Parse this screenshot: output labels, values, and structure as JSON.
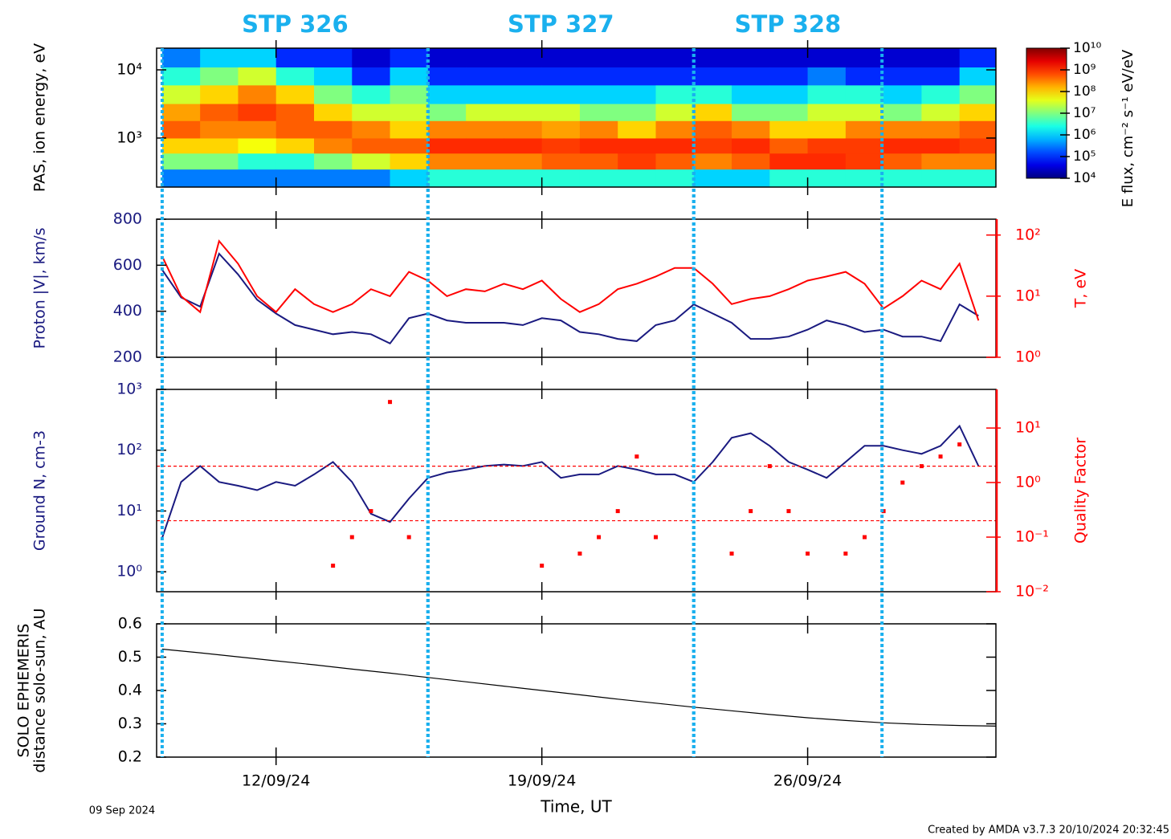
{
  "chart_data": [
    {
      "type": "spectrogram",
      "ylabel": "PAS, ion energy, eV",
      "ylog": true,
      "xlim": [
        "2024-09-08T20:30",
        "2024-09-30T23:00"
      ],
      "ylim": [
        191,
        20800
      ],
      "yticks": [
        {
          "value": 1000,
          "label": "10³"
        },
        {
          "value": 10000,
          "label": "10⁴"
        }
      ],
      "time_edges": [
        "2024-09-09T00:00",
        "2024-09-10T00:00",
        "2024-09-11T00:00",
        "2024-09-12T00:00",
        "2024-09-13T00:00",
        "2024-09-14T00:00",
        "2024-09-15T00:00",
        "2024-09-16T00:00",
        "2024-09-17T00:00",
        "2024-09-18T00:00",
        "2024-09-19T00:00",
        "2024-09-20T00:00",
        "2024-09-21T00:00",
        "2024-09-22T00:00",
        "2024-09-23T00:00",
        "2024-09-24T00:00",
        "2024-09-25T00:00",
        "2024-09-26T00:00",
        "2024-09-27T00:00",
        "2024-09-28T00:00",
        "2024-09-29T00:00",
        "2024-09-30T00:00",
        "2024-09-30T23:00"
      ],
      "energy_edges": [
        191,
        350,
        600,
        1000,
        1800,
        3200,
        6000,
        11000,
        20800
      ],
      "z": [
        [
          300000.0,
          10000000.0,
          100000000.0,
          500000000.0,
          200000000.0,
          30000000.0,
          3000000.0,
          300000.0
        ],
        [
          300000.0,
          10000000.0,
          100000000.0,
          300000000.0,
          500000000.0,
          100000000.0,
          10000000.0,
          1000000.0
        ],
        [
          300000.0,
          3000000.0,
          50000000.0,
          300000000.0,
          800000000.0,
          300000000.0,
          30000000.0,
          1000000.0
        ],
        [
          300000.0,
          3000000.0,
          100000000.0,
          500000000.0,
          500000000.0,
          100000000.0,
          3000000.0,
          100000.0
        ],
        [
          300000.0,
          10000000.0,
          300000000.0,
          500000000.0,
          100000000.0,
          10000000.0,
          1000000.0,
          100000.0
        ],
        [
          300000.0,
          30000000.0,
          500000000.0,
          300000000.0,
          30000000.0,
          3000000.0,
          100000.0,
          30000.0
        ],
        [
          1000000.0,
          100000000.0,
          500000000.0,
          100000000.0,
          30000000.0,
          10000000.0,
          1000000.0,
          100000.0
        ],
        [
          3000000.0,
          300000000.0,
          1000000000.0,
          300000000.0,
          10000000.0,
          1000000.0,
          100000.0,
          30000.0
        ],
        [
          3000000.0,
          300000000.0,
          1000000000.0,
          300000000.0,
          30000000.0,
          1000000.0,
          100000.0,
          30000.0
        ],
        [
          3000000.0,
          300000000.0,
          1000000000.0,
          300000000.0,
          30000000.0,
          1000000.0,
          100000.0,
          30000.0
        ],
        [
          3000000.0,
          500000000.0,
          800000000.0,
          200000000.0,
          30000000.0,
          1000000.0,
          100000.0,
          30000.0
        ],
        [
          3000000.0,
          500000000.0,
          1000000000.0,
          300000000.0,
          10000000.0,
          1000000.0,
          100000.0,
          30000.0
        ],
        [
          3000000.0,
          800000000.0,
          1000000000.0,
          100000000.0,
          10000000.0,
          1000000.0,
          100000.0,
          30000.0
        ],
        [
          3000000.0,
          500000000.0,
          1000000000.0,
          300000000.0,
          30000000.0,
          3000000.0,
          100000.0,
          30000.0
        ],
        [
          1000000.0,
          300000000.0,
          800000000.0,
          500000000.0,
          100000000.0,
          3000000.0,
          100000.0,
          30000.0
        ],
        [
          1000000.0,
          500000000.0,
          1000000000.0,
          300000000.0,
          10000000.0,
          1000000.0,
          100000.0,
          30000.0
        ],
        [
          3000000.0,
          1000000000.0,
          500000000.0,
          100000000.0,
          10000000.0,
          1000000.0,
          100000.0,
          30000.0
        ],
        [
          3000000.0,
          1000000000.0,
          800000000.0,
          100000000.0,
          30000000.0,
          3000000.0,
          300000.0,
          30000.0
        ],
        [
          3000000.0,
          800000000.0,
          800000000.0,
          300000000.0,
          30000000.0,
          3000000.0,
          100000.0,
          30000.0
        ],
        [
          3000000.0,
          500000000.0,
          1000000000.0,
          300000000.0,
          10000000.0,
          1000000.0,
          100000.0,
          30000.0
        ],
        [
          3000000.0,
          300000000.0,
          1000000000.0,
          300000000.0,
          30000000.0,
          3000000.0,
          100000.0,
          30000.0
        ],
        [
          3000000.0,
          300000000.0,
          800000000.0,
          500000000.0,
          100000000.0,
          10000000.0,
          1000000.0,
          100000.0
        ]
      ],
      "colormap": "jet",
      "zlim": [
        10000.0,
        10000000000.0
      ],
      "zticks": [
        {
          "value": 10000.0,
          "label": "10⁴"
        },
        {
          "value": 100000.0,
          "label": "10⁵"
        },
        {
          "value": 1000000.0,
          "label": "10⁶"
        },
        {
          "value": 10000000.0,
          "label": "10⁷"
        },
        {
          "value": 100000000.0,
          "label": "10⁸"
        },
        {
          "value": 1000000000.0,
          "label": "10⁹"
        },
        {
          "value": 10000000000.0,
          "label": "10¹⁰"
        }
      ],
      "zlabel": "E flux, cm⁻² s⁻¹ eV/eV"
    },
    {
      "type": "line",
      "ylabel": "Proton |V|, km/s",
      "y2label": "T, eV",
      "y2log": true,
      "xlim": [
        "2024-09-08T20:30",
        "2024-09-30T23:00"
      ],
      "ylim": [
        200,
        800
      ],
      "yticks": [
        200,
        400,
        600,
        800
      ],
      "y2lim": [
        1,
        182
      ],
      "y2ticks": [
        {
          "value": 1,
          "label": "10⁰"
        },
        {
          "value": 10,
          "label": "10¹"
        },
        {
          "value": 100,
          "label": "10²"
        }
      ],
      "x": [
        "2024-09-09T00:00",
        "2024-09-09T12:00",
        "2024-09-10T00:00",
        "2024-09-10T12:00",
        "2024-09-11T00:00",
        "2024-09-11T12:00",
        "2024-09-12T00:00",
        "2024-09-12T12:00",
        "2024-09-13T00:00",
        "2024-09-13T12:00",
        "2024-09-14T00:00",
        "2024-09-14T12:00",
        "2024-09-15T00:00",
        "2024-09-15T12:00",
        "2024-09-16T00:00",
        "2024-09-16T12:00",
        "2024-09-17T00:00",
        "2024-09-17T12:00",
        "2024-09-18T00:00",
        "2024-09-18T12:00",
        "2024-09-19T00:00",
        "2024-09-19T12:00",
        "2024-09-20T00:00",
        "2024-09-20T12:00",
        "2024-09-21T00:00",
        "2024-09-21T12:00",
        "2024-09-22T00:00",
        "2024-09-22T12:00",
        "2024-09-23T00:00",
        "2024-09-23T12:00",
        "2024-09-24T00:00",
        "2024-09-24T12:00",
        "2024-09-25T00:00",
        "2024-09-25T12:00",
        "2024-09-26T00:00",
        "2024-09-26T12:00",
        "2024-09-27T00:00",
        "2024-09-27T12:00",
        "2024-09-28T00:00",
        "2024-09-28T12:00",
        "2024-09-29T00:00",
        "2024-09-29T12:00",
        "2024-09-30T00:00",
        "2024-09-30T12:00"
      ],
      "series": [
        {
          "color": "#1a1a80",
          "values": [
            580,
            460,
            420,
            650,
            560,
            450,
            390,
            340,
            320,
            300,
            310,
            300,
            260,
            370,
            390,
            360,
            350,
            350,
            350,
            340,
            370,
            360,
            310,
            300,
            280,
            270,
            340,
            360,
            430,
            390,
            350,
            280,
            280,
            290,
            320,
            360,
            340,
            310,
            320,
            290,
            290,
            270,
            430,
            380
          ]
        },
        {
          "color": "#ff0000",
          "axis": "y2",
          "values": [
            45,
            10,
            5.5,
            80,
            34,
            10,
            5.5,
            13,
            7.4,
            5.5,
            7.4,
            13,
            10,
            25,
            18,
            10,
            13,
            12,
            16,
            13,
            18,
            9,
            5.5,
            7.4,
            13,
            16,
            21,
            29,
            29,
            16,
            7.4,
            9,
            10,
            13,
            18,
            21,
            25,
            16,
            6.3,
            10,
            18,
            13,
            34,
            4
          ]
        }
      ]
    },
    {
      "type": "line",
      "ylabel": "Ground N, cm-3",
      "y2label": "Quality Factor",
      "ylog": true,
      "y2log": true,
      "xlim": [
        "2024-09-08T20:30",
        "2024-09-30T23:00"
      ],
      "ylim": [
        0.47,
        1000
      ],
      "yticks": [
        {
          "value": 1,
          "label": "10⁰"
        },
        {
          "value": 10,
          "label": "10¹"
        },
        {
          "value": 100,
          "label": "10²"
        },
        {
          "value": 1000,
          "label": "10³"
        }
      ],
      "y2lim": [
        0.01,
        51
      ],
      "y2ticks": [
        {
          "value": 0.01,
          "label": "10⁻²"
        },
        {
          "value": 0.1,
          "label": "10⁻¹"
        },
        {
          "value": 1,
          "label": "10⁰"
        },
        {
          "value": 10,
          "label": "10¹"
        }
      ],
      "y2_hlines": [
        2,
        0.2
      ],
      "x": [
        "2024-09-09T00:00",
        "2024-09-09T12:00",
        "2024-09-10T00:00",
        "2024-09-10T12:00",
        "2024-09-11T00:00",
        "2024-09-11T12:00",
        "2024-09-12T00:00",
        "2024-09-12T12:00",
        "2024-09-13T00:00",
        "2024-09-13T12:00",
        "2024-09-14T00:00",
        "2024-09-14T12:00",
        "2024-09-15T00:00",
        "2024-09-15T12:00",
        "2024-09-16T00:00",
        "2024-09-16T12:00",
        "2024-09-17T00:00",
        "2024-09-17T12:00",
        "2024-09-18T00:00",
        "2024-09-18T12:00",
        "2024-09-19T00:00",
        "2024-09-19T12:00",
        "2024-09-20T00:00",
        "2024-09-20T12:00",
        "2024-09-21T00:00",
        "2024-09-21T12:00",
        "2024-09-22T00:00",
        "2024-09-22T12:00",
        "2024-09-23T00:00",
        "2024-09-23T12:00",
        "2024-09-24T00:00",
        "2024-09-24T12:00",
        "2024-09-25T00:00",
        "2024-09-25T12:00",
        "2024-09-26T00:00",
        "2024-09-26T12:00",
        "2024-09-27T00:00",
        "2024-09-27T12:00",
        "2024-09-28T00:00",
        "2024-09-28T12:00",
        "2024-09-29T00:00",
        "2024-09-29T12:00",
        "2024-09-30T00:00",
        "2024-09-30T12:00"
      ],
      "series": [
        {
          "color": "#1a1a80",
          "values": [
            3.6,
            30,
            55,
            30,
            26,
            22,
            30,
            26,
            40,
            64,
            30,
            9,
            6.6,
            16,
            35,
            43,
            48,
            55,
            58,
            55,
            64,
            35,
            40,
            40,
            55,
            48,
            40,
            40,
            30,
            64,
            160,
            190,
            118,
            64,
            48,
            35,
            64,
            118,
            118,
            100,
            87,
            118,
            250,
            55
          ]
        },
        {
          "color": "#ff0000",
          "axis": "y2",
          "mode": "markers",
          "values": [
            null,
            null,
            null,
            null,
            null,
            null,
            null,
            null,
            null,
            0.03,
            0.1,
            0.3,
            30,
            0.1,
            null,
            null,
            null,
            null,
            null,
            null,
            0.03,
            null,
            0.05,
            0.1,
            0.3,
            3,
            0.1,
            null,
            null,
            null,
            0.05,
            0.3,
            2,
            0.3,
            0.05,
            null,
            0.05,
            0.1,
            0.3,
            1,
            2,
            3,
            5,
            null
          ]
        }
      ]
    },
    {
      "type": "line",
      "ylabel": [
        "SOLO EPHEMERIS",
        "distance solo-sun, AU"
      ],
      "xlabel": "Time, UT",
      "xlim": [
        "2024-09-08T20:30",
        "2024-09-30T23:00"
      ],
      "xticks": [
        {
          "value": "2024-09-12T00:00",
          "label": "12/09/24"
        },
        {
          "value": "2024-09-19T00:00",
          "label": "19/09/24"
        },
        {
          "value": "2024-09-26T00:00",
          "label": "26/09/24"
        }
      ],
      "ylim": [
        0.2,
        0.6
      ],
      "yticks": [
        0.2,
        0.3,
        0.4,
        0.5,
        0.6
      ],
      "x": [
        "2024-09-09T00:00",
        "2024-09-10T00:00",
        "2024-09-11T00:00",
        "2024-09-12T00:00",
        "2024-09-13T00:00",
        "2024-09-14T00:00",
        "2024-09-15T00:00",
        "2024-09-16T00:00",
        "2024-09-17T00:00",
        "2024-09-18T00:00",
        "2024-09-19T00:00",
        "2024-09-20T00:00",
        "2024-09-21T00:00",
        "2024-09-22T00:00",
        "2024-09-23T00:00",
        "2024-09-24T00:00",
        "2024-09-25T00:00",
        "2024-09-26T00:00",
        "2024-09-27T00:00",
        "2024-09-28T00:00",
        "2024-09-29T00:00",
        "2024-09-30T00:00",
        "2024-09-30T23:00"
      ],
      "series": [
        {
          "color": "#000000",
          "values": [
            0.524,
            0.513,
            0.501,
            0.489,
            0.477,
            0.464,
            0.452,
            0.439,
            0.426,
            0.413,
            0.4,
            0.387,
            0.374,
            0.362,
            0.35,
            0.339,
            0.328,
            0.318,
            0.31,
            0.303,
            0.298,
            0.295,
            0.293
          ]
        }
      ]
    }
  ],
  "annotations": {
    "color": "#1ab0ee",
    "periods": [
      {
        "label": "STP 326",
        "start": "2024-09-09T00:00",
        "end": "2024-09-16T00:00"
      },
      {
        "label": "STP 327",
        "start": "2024-09-16T00:00",
        "end": "2024-09-23T00:00"
      },
      {
        "label": "STP 328",
        "start": "2024-09-23T00:00",
        "end": "2024-09-27T23:00"
      }
    ]
  },
  "start_date": "09 Sep 2024",
  "footer": "Created by AMDA v3.7.3 20/10/2024 20:32:45"
}
